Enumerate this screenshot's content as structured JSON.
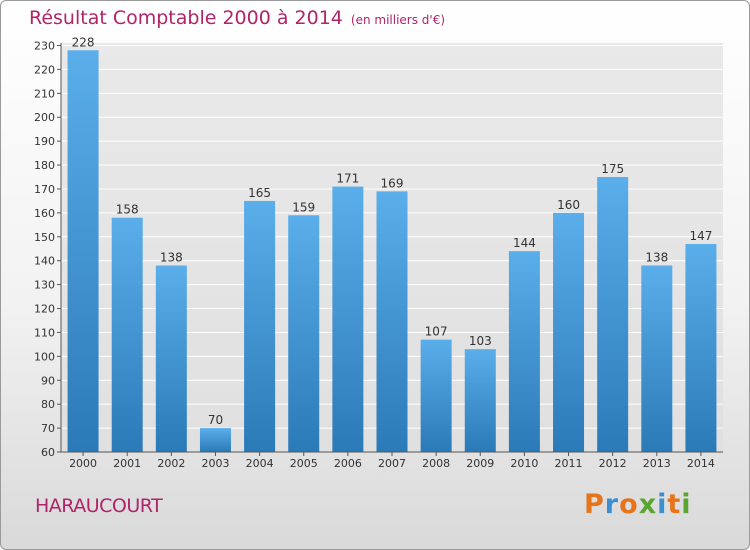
{
  "chart_data": {
    "type": "bar",
    "title": "Résultat Comptable 2000 à 2014",
    "subtitle": "(en milliers d'€)",
    "xlabel": "",
    "ylabel": "",
    "categories": [
      "2000",
      "2001",
      "2002",
      "2003",
      "2004",
      "2005",
      "2006",
      "2007",
      "2008",
      "2009",
      "2010",
      "2011",
      "2012",
      "2013",
      "2014"
    ],
    "values": [
      228,
      158,
      138,
      70,
      165,
      159,
      171,
      169,
      107,
      103,
      144,
      160,
      175,
      138,
      147
    ],
    "ylim": [
      60,
      230
    ],
    "yticks": [
      60,
      70,
      80,
      90,
      100,
      110,
      120,
      130,
      140,
      150,
      160,
      170,
      180,
      190,
      200,
      210,
      220,
      230
    ],
    "grid": true,
    "legend": "none"
  },
  "footer": {
    "location": "HARAUCOURT",
    "logo_letters": [
      "P",
      "r",
      "o",
      "x",
      "i",
      "t",
      "i"
    ]
  },
  "colors": {
    "title": "#b0246a",
    "bar_top": "#5aaeea",
    "bar_bottom": "#2b7ab8",
    "logo": [
      "#e8741a",
      "#3b8ed0",
      "#e8741a",
      "#5aa532",
      "#3b8ed0",
      "#e8741a",
      "#5aa532"
    ]
  }
}
